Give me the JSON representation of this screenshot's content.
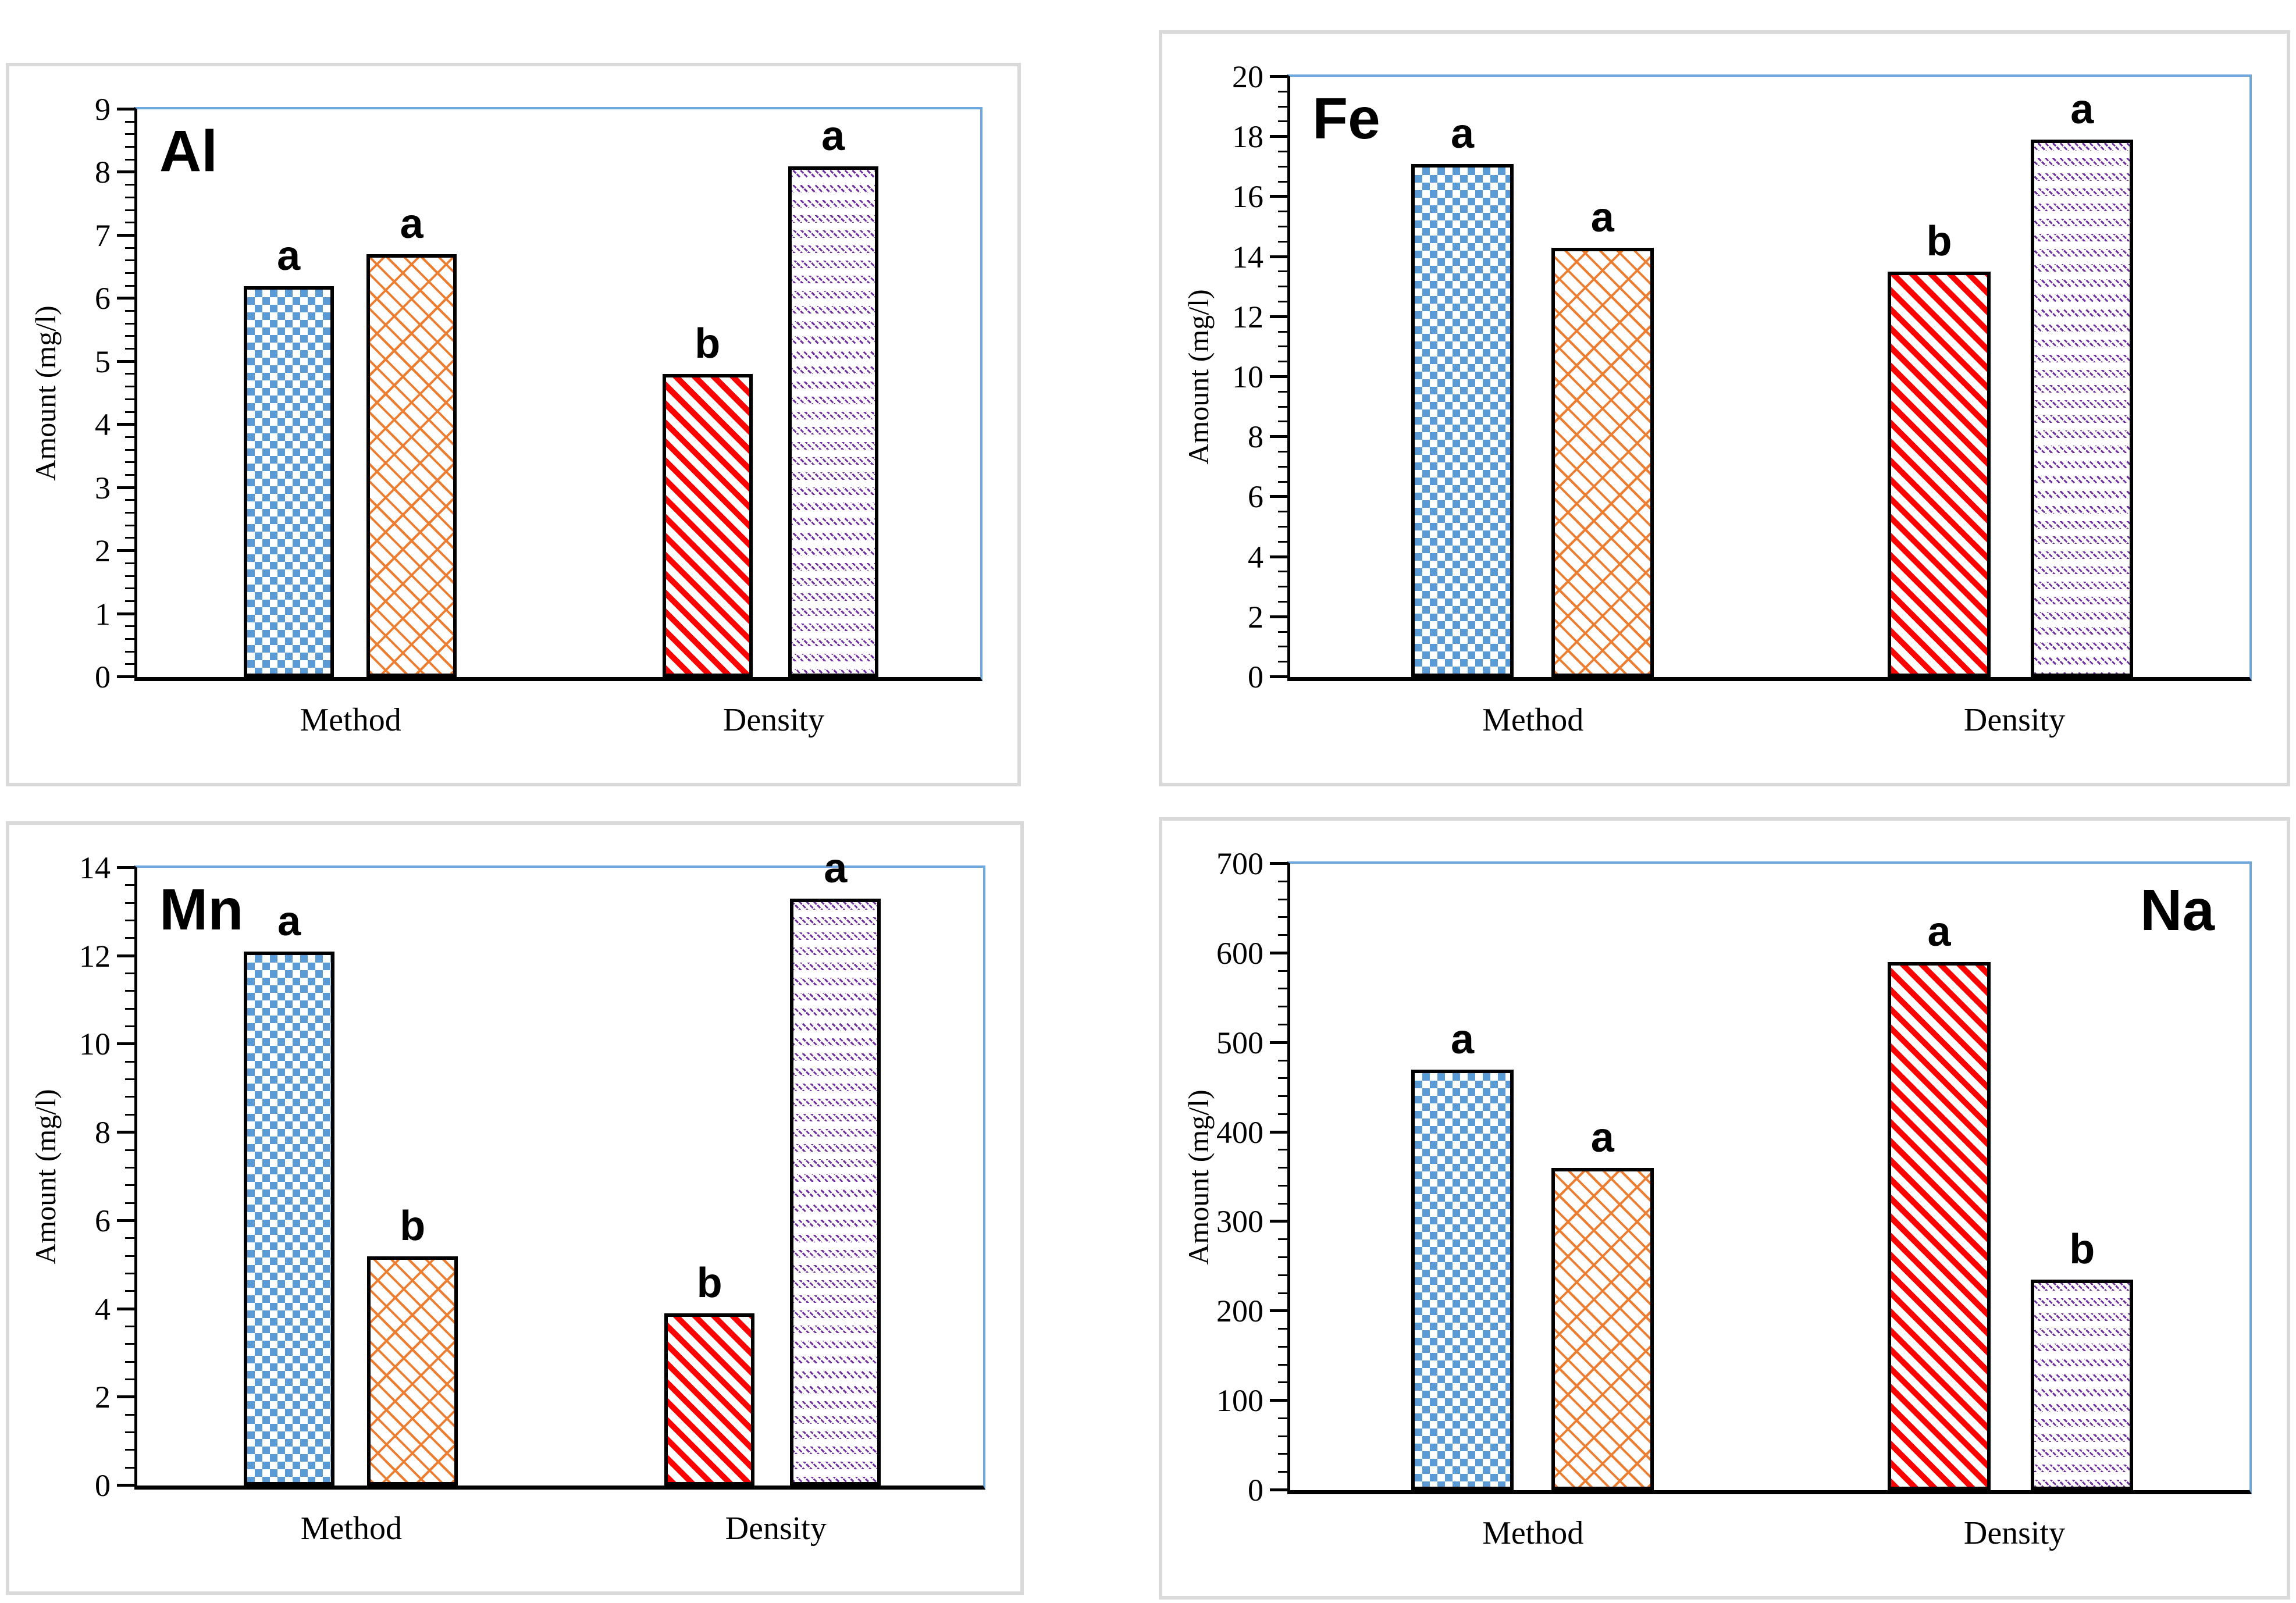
{
  "figure": {
    "ylabel": "Amount  (mg/l)",
    "x_categories": [
      "Method",
      "Density"
    ],
    "colors": {
      "checker_blue": "#5b9bd5",
      "brick_orange": "#ed7d31",
      "stripe_red": "#ff0000",
      "dash_purple": "#7030a0",
      "plot_border_blue": "#6fa8dc",
      "panel_border_gray": "#d9d9d9",
      "axis_black": "#000000"
    }
  },
  "chart_data": [
    {
      "type": "bar",
      "title": "Al",
      "title_position": "top-left",
      "ylabel": "Amount  (mg/l)",
      "ylim": [
        0,
        9
      ],
      "ytick_step": 1,
      "minor_tick_step": 0.2,
      "yticks": [
        "0",
        "1",
        "2",
        "3",
        "4",
        "5",
        "6",
        "7",
        "8",
        "9"
      ],
      "categories": [
        "Method",
        "Density"
      ],
      "grid": "off",
      "legend": "none",
      "bars": [
        {
          "category": "Method",
          "pattern": "checker",
          "value": 6.2,
          "letter": "a"
        },
        {
          "category": "Method",
          "pattern": "brick",
          "value": 6.7,
          "letter": "a"
        },
        {
          "category": "Density",
          "pattern": "stripe",
          "value": 4.8,
          "letter": "b"
        },
        {
          "category": "Density",
          "pattern": "dash",
          "value": 8.1,
          "letter": "a"
        }
      ]
    },
    {
      "type": "bar",
      "title": "Fe",
      "title_position": "top-left",
      "ylabel": "Amount  (mg/l)",
      "ylim": [
        0,
        20
      ],
      "ytick_step": 2,
      "minor_tick_step": 0.5,
      "yticks": [
        "0",
        "2",
        "4",
        "6",
        "8",
        "10",
        "12",
        "14",
        "16",
        "18",
        "20"
      ],
      "categories": [
        "Method",
        "Density"
      ],
      "grid": "off",
      "legend": "none",
      "bars": [
        {
          "category": "Method",
          "pattern": "checker",
          "value": 17.1,
          "letter": "a"
        },
        {
          "category": "Method",
          "pattern": "brick",
          "value": 14.3,
          "letter": "a"
        },
        {
          "category": "Density",
          "pattern": "stripe",
          "value": 13.5,
          "letter": "b"
        },
        {
          "category": "Density",
          "pattern": "dash",
          "value": 17.9,
          "letter": "a"
        }
      ]
    },
    {
      "type": "bar",
      "title": "Mn",
      "title_position": "top-left",
      "ylabel": "Amount  (mg/l)",
      "ylim": [
        0,
        14
      ],
      "ytick_step": 2,
      "minor_tick_step": 0.4,
      "yticks": [
        "0",
        "2",
        "4",
        "6",
        "8",
        "10",
        "12",
        "14"
      ],
      "categories": [
        "Method",
        "Density"
      ],
      "grid": "off",
      "legend": "none",
      "bars": [
        {
          "category": "Method",
          "pattern": "checker",
          "value": 12.1,
          "letter": "a"
        },
        {
          "category": "Method",
          "pattern": "brick",
          "value": 5.2,
          "letter": "b"
        },
        {
          "category": "Density",
          "pattern": "stripe",
          "value": 3.9,
          "letter": "b"
        },
        {
          "category": "Density",
          "pattern": "dash",
          "value": 13.3,
          "letter": "a"
        }
      ]
    },
    {
      "type": "bar",
      "title": "Na",
      "title_position": "top-right",
      "ylabel": "Amount  (mg/l)",
      "ylim": [
        0,
        700
      ],
      "ytick_step": 100,
      "minor_tick_step": 20,
      "yticks": [
        "0",
        "100",
        "200",
        "300",
        "400",
        "500",
        "600",
        "700"
      ],
      "categories": [
        "Method",
        "Density"
      ],
      "grid": "off",
      "legend": "none",
      "bars": [
        {
          "category": "Method",
          "pattern": "checker",
          "value": 470,
          "letter": "a"
        },
        {
          "category": "Method",
          "pattern": "brick",
          "value": 360,
          "letter": "a"
        },
        {
          "category": "Density",
          "pattern": "stripe",
          "value": 590,
          "letter": "a"
        },
        {
          "category": "Density",
          "pattern": "dash",
          "value": 235,
          "letter": "b"
        }
      ]
    }
  ]
}
